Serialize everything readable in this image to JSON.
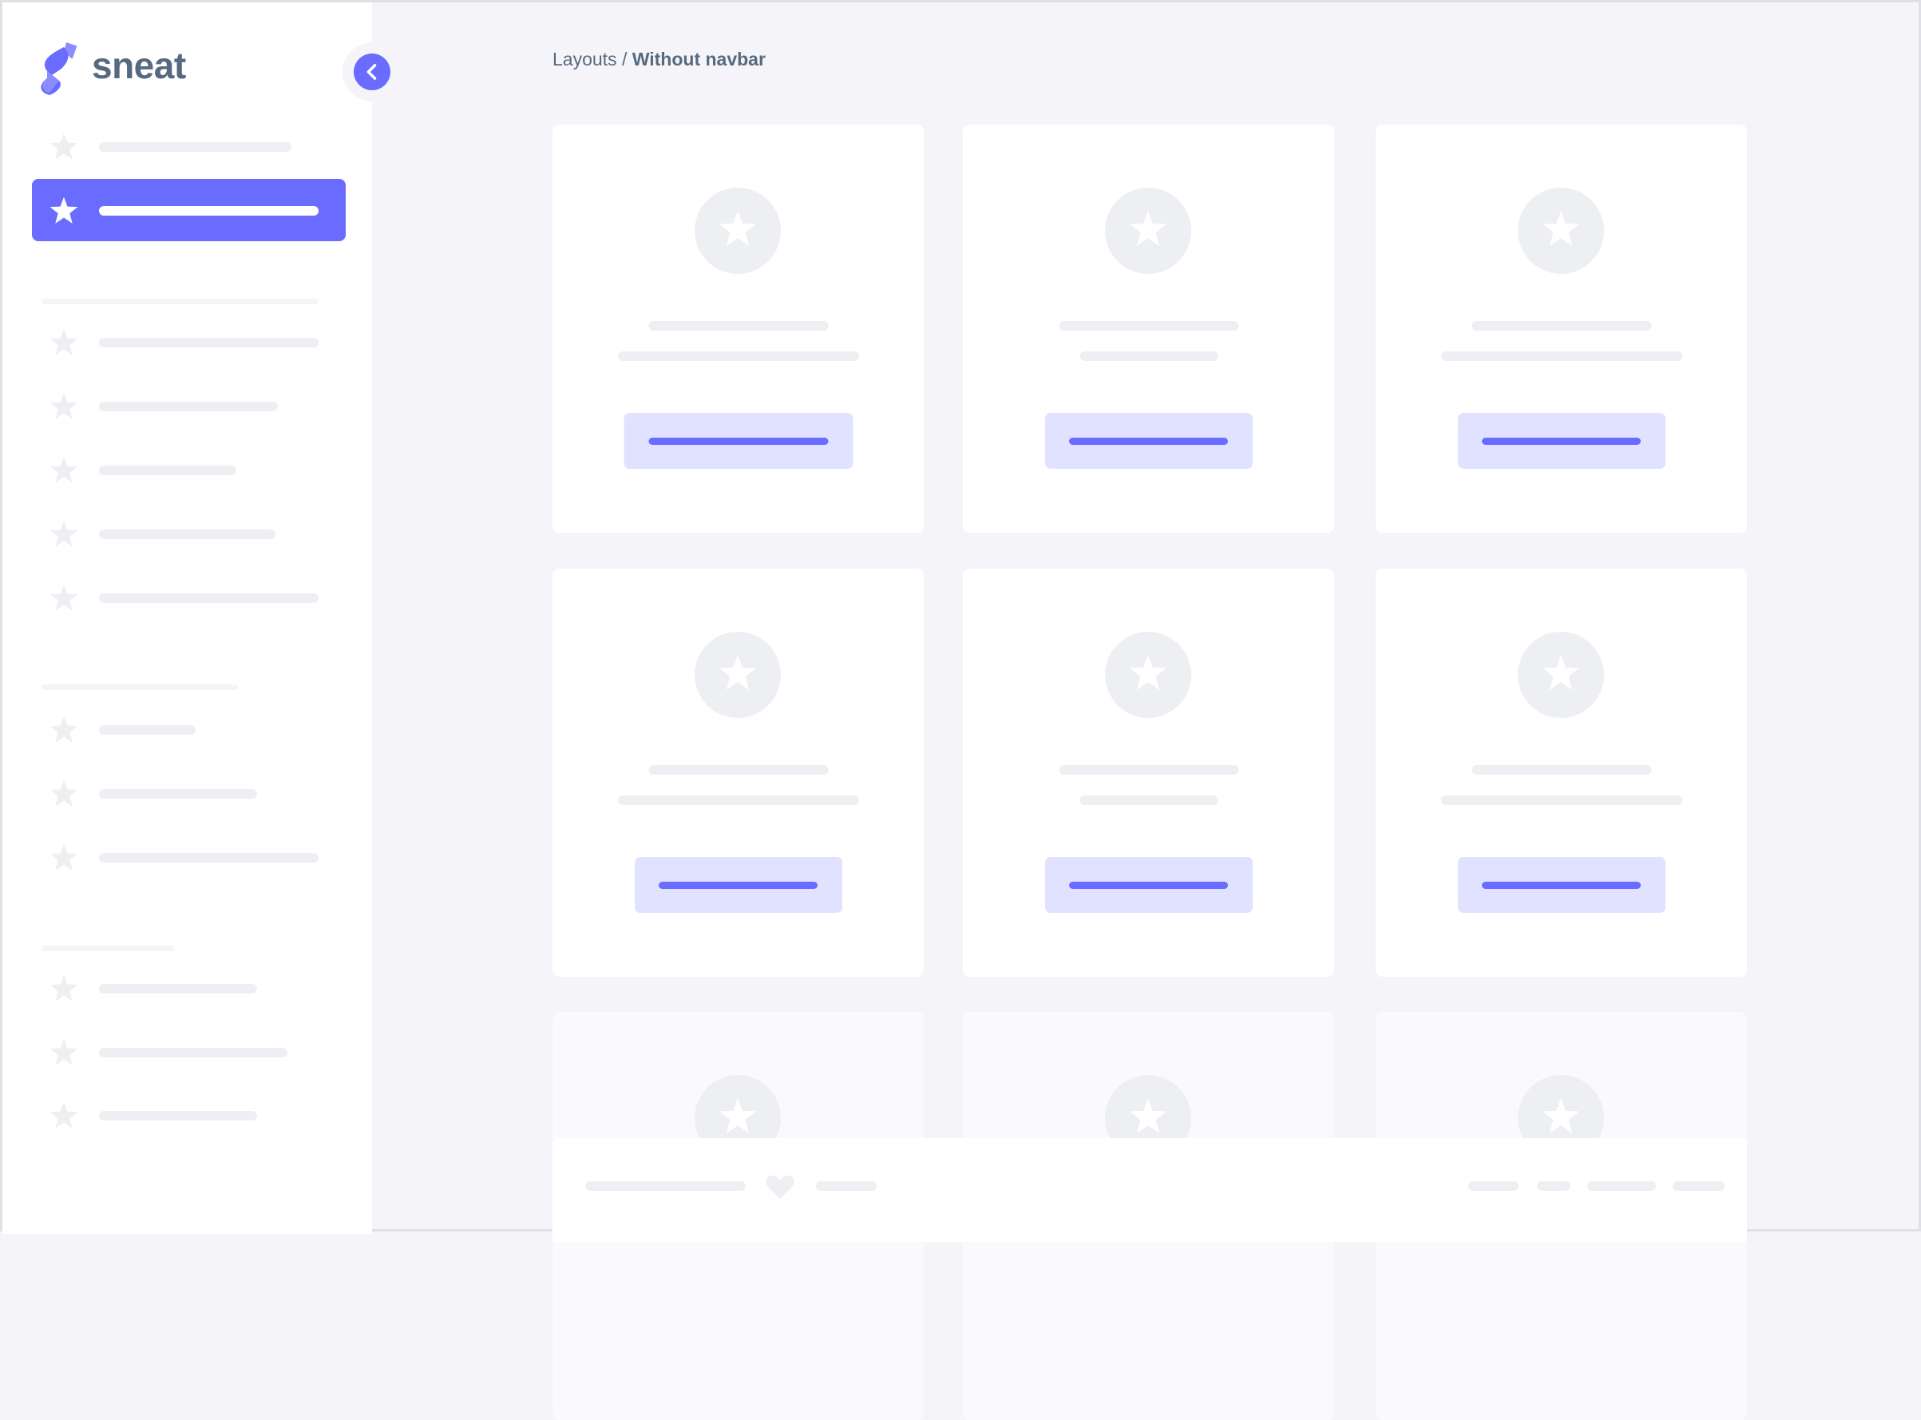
{
  "app": {
    "logo_text": "sneat"
  },
  "breadcrumb": {
    "parent": "Layouts",
    "separator": " / ",
    "current": "Without navbar"
  },
  "colors": {
    "primary": "#696cff",
    "primary_light": "#e1e2ff",
    "text": "#566a7f",
    "background": "#f5f5f9",
    "skeleton": "#eeeff3"
  },
  "icons": {
    "menu_item": "star-icon",
    "toggle": "chevron-left-icon",
    "card": "star-icon",
    "footer": "heart-icon"
  }
}
